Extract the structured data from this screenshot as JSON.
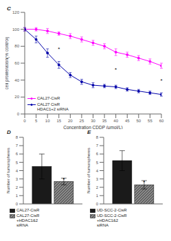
{
  "chart_data": [
    {
      "type": "line",
      "title": "C",
      "x_label": "Concentration CDDP (μmol/L)",
      "y_label": "cell proliferation(% control)",
      "x": [
        0,
        5,
        10,
        15,
        20,
        25,
        30,
        35,
        40,
        45,
        50,
        55,
        60
      ],
      "series": [
        {
          "name": "CAL27-CisR",
          "color": "#FF00FF",
          "marker": "o",
          "values": [
            100,
            100,
            98,
            95,
            92,
            88,
            84,
            80,
            73,
            70,
            66,
            62,
            57
          ],
          "error": [
            2,
            2,
            3,
            2,
            3,
            3,
            3,
            3,
            4,
            3,
            3,
            3,
            3
          ]
        },
        {
          "name": "CAL27 CisR\nHDAC1+2 siRNA",
          "color": "#0000AA",
          "marker": "o",
          "values": [
            100,
            88,
            72,
            58,
            46,
            38,
            34,
            33,
            32,
            29,
            27,
            25,
            23
          ],
          "error": [
            2,
            4,
            5,
            4,
            3,
            3,
            3,
            2,
            2,
            2,
            2,
            2,
            2
          ]
        }
      ],
      "xlim": [
        0,
        60
      ],
      "ylim": [
        0,
        120
      ],
      "xticks": [
        0,
        5,
        10,
        15,
        20,
        25,
        30,
        35,
        40,
        45,
        50,
        55,
        60
      ],
      "yticks": [
        0,
        20,
        40,
        60,
        80,
        100,
        120
      ],
      "annotations": [
        {
          "x": 15,
          "text": "*"
        },
        {
          "x": 40,
          "text": "*"
        },
        {
          "x": 60,
          "text": "*"
        }
      ],
      "legend": "lower left"
    },
    {
      "type": "bar",
      "title": "D",
      "y_label": "Number of tumorspheres",
      "series": [
        {
          "name": "CAL27-CisR",
          "color": "#1a1a1a",
          "values": [
            4.5
          ],
          "error": [
            1.5
          ]
        },
        {
          "name": "CAL27-CisR\n+HDAC1&2\nsiRNA",
          "color": "#888888",
          "values": [
            2.7
          ],
          "error": [
            0.4
          ]
        }
      ],
      "ylim": [
        0,
        8
      ],
      "yticks": [
        0,
        1,
        2,
        3,
        4,
        5,
        6,
        7,
        8
      ],
      "tick_labels": "y",
      "annotations": [
        {
          "series": 1,
          "text": "*"
        }
      ],
      "legend": "bottom"
    },
    {
      "type": "bar",
      "title": "E",
      "y_label": "Number of tumorspheres",
      "series": [
        {
          "name": "UD-SCC-2-CisR",
          "color": "#1a1a1a",
          "values": [
            5.2
          ],
          "error": [
            1.2
          ]
        },
        {
          "name": "UD-SCC-2-CisR\n+HDAC1&2\nsiRNA",
          "color": "#888888",
          "values": [
            2.3
          ],
          "error": [
            0.5
          ]
        }
      ],
      "ylim": [
        0,
        8
      ],
      "yticks": [
        0,
        1,
        2,
        3,
        4,
        5,
        6,
        7,
        8
      ],
      "tick_labels": "y",
      "annotations": [
        {
          "series": 1,
          "text": "*"
        }
      ],
      "legend": "bottom"
    }
  ]
}
